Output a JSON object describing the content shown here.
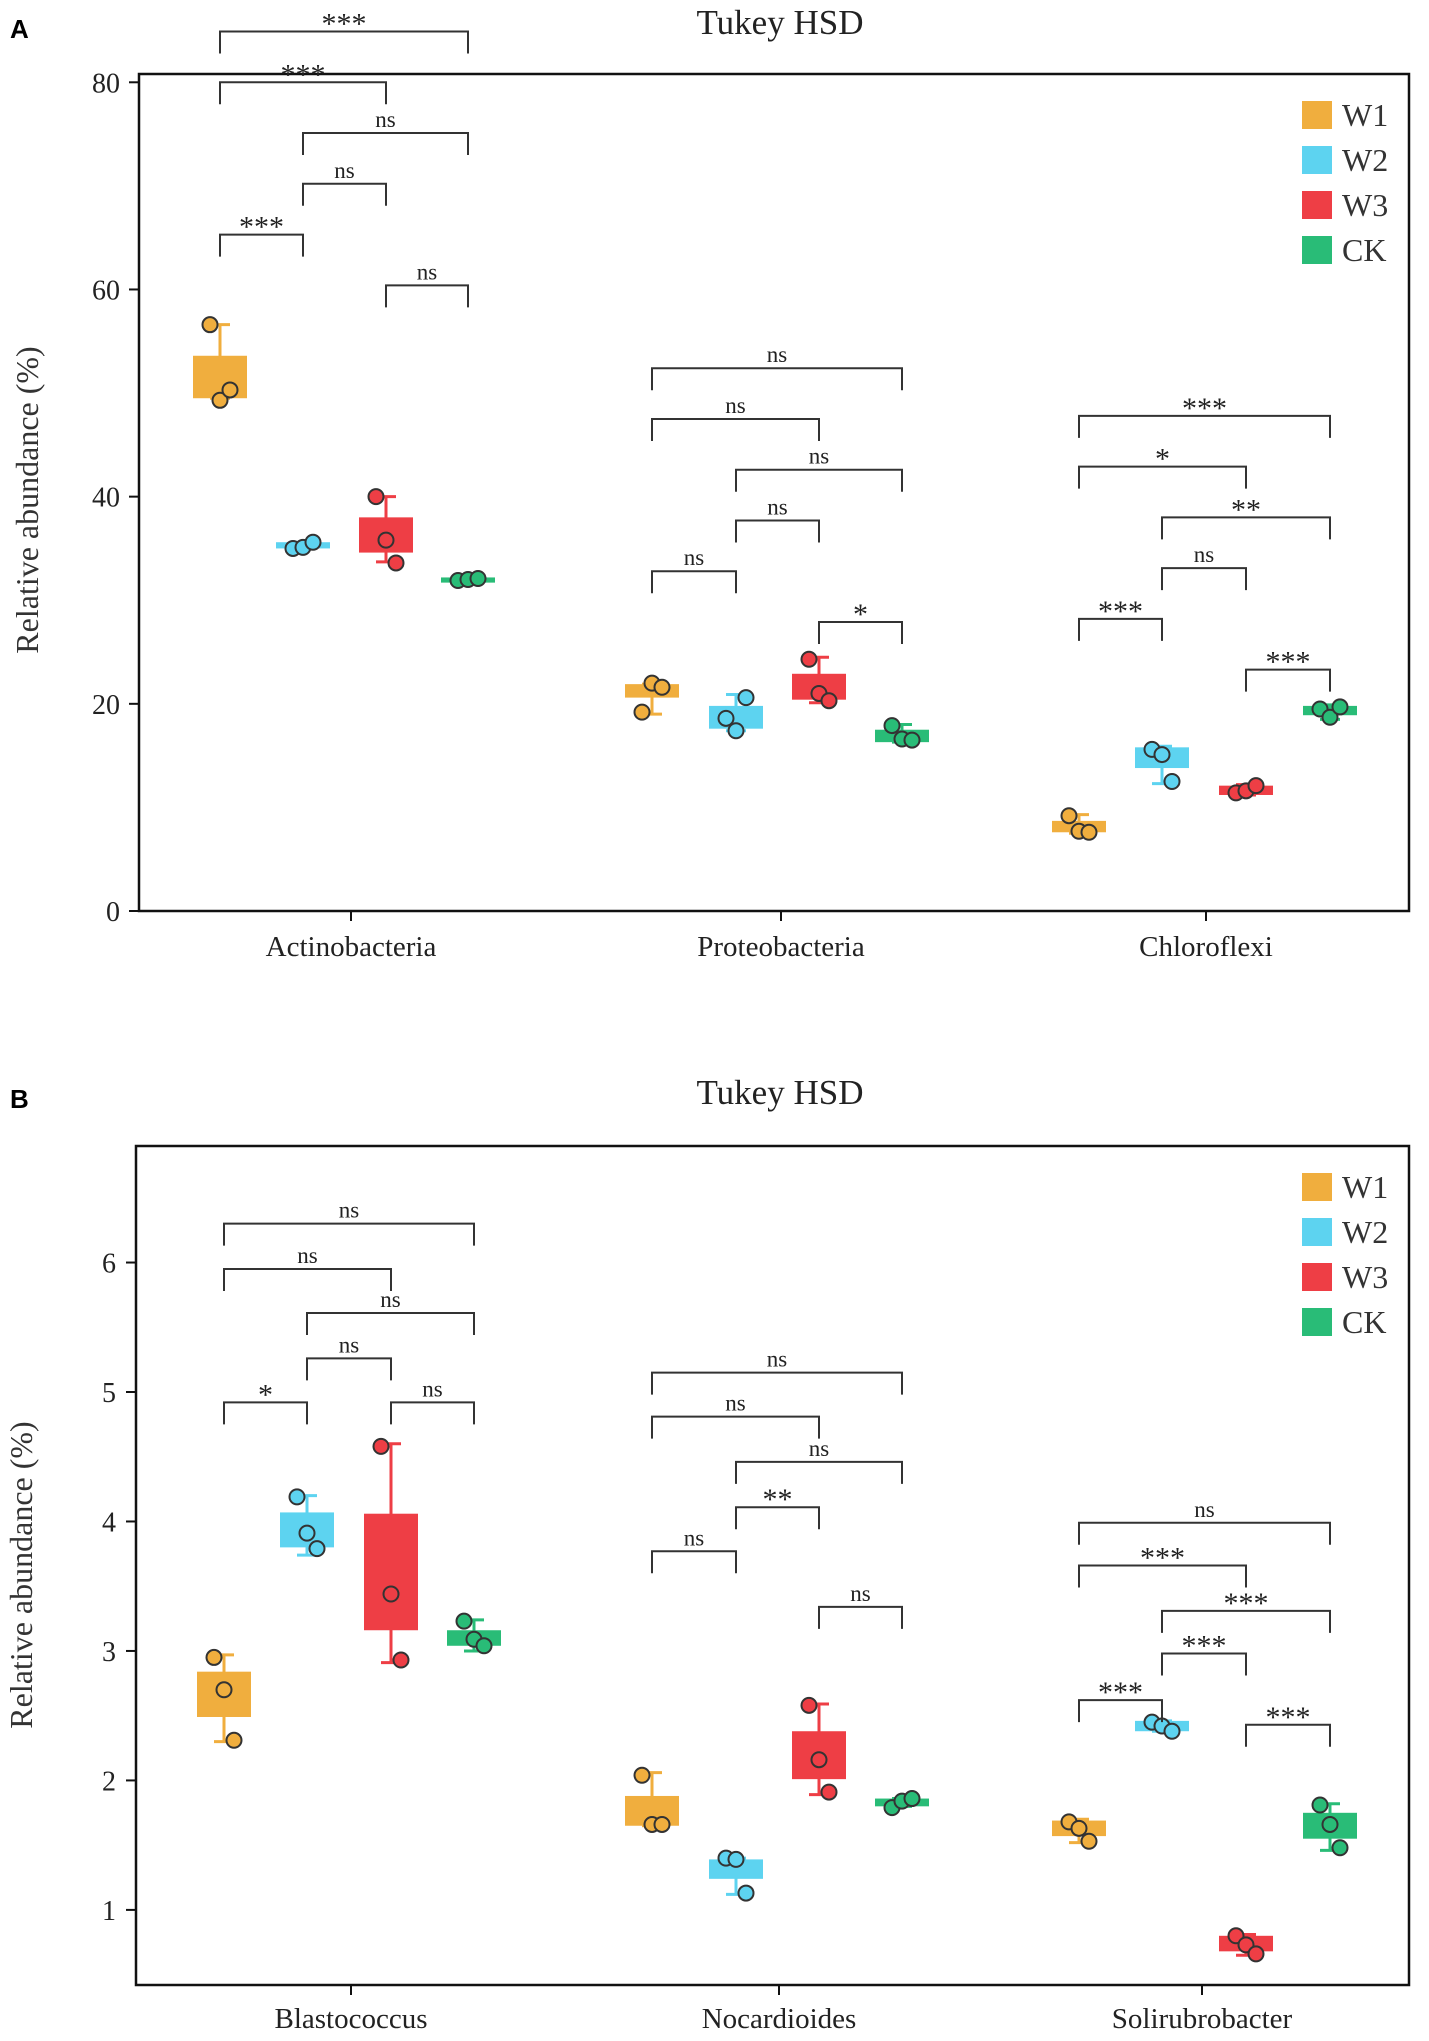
{
  "groups": [
    "W1",
    "W2",
    "W3",
    "CK"
  ],
  "colors": {
    "W1": "#F0AE3E",
    "W2": "#5DD3F0",
    "W3": "#EE3E45",
    "CK": "#29BC77"
  },
  "chart_data": [
    {
      "panel": "A",
      "type": "box",
      "title": "Tukey HSD",
      "ylabel": "Relative abundance (%)",
      "xlabel": "",
      "ylim": [
        0,
        80.8
      ],
      "yticks": [
        0,
        20,
        40,
        60,
        80
      ],
      "ytick_labels": [
        "0",
        "20",
        "40",
        "60",
        "80"
      ],
      "legend": {
        "position": "top-right",
        "labels": [
          "W1",
          "W2",
          "W3",
          "CK"
        ]
      },
      "categories": [
        "Actinobacteria",
        "Proteobacteria",
        "Chloroflexi"
      ],
      "series": [
        {
          "category": "Actinobacteria",
          "group": "W1",
          "min": 49.5,
          "q1": 49.5,
          "q3": 53.6,
          "max": 56.6,
          "points": [
            56.6,
            49.3,
            50.3
          ]
        },
        {
          "category": "Actinobacteria",
          "group": "W2",
          "min": 35.0,
          "q1": 35.0,
          "q3": 35.6,
          "max": 35.6,
          "points": [
            35.0,
            35.1,
            35.6
          ]
        },
        {
          "category": "Actinobacteria",
          "group": "W3",
          "min": 33.7,
          "q1": 34.6,
          "q3": 38.0,
          "max": 40.0,
          "points": [
            40.0,
            35.8,
            33.6
          ]
        },
        {
          "category": "Actinobacteria",
          "group": "CK",
          "min": 31.7,
          "q1": 31.7,
          "q3": 32.2,
          "max": 32.2,
          "points": [
            31.9,
            32.0,
            32.1
          ]
        },
        {
          "category": "Proteobacteria",
          "group": "W1",
          "min": 19.0,
          "q1": 20.6,
          "q3": 21.9,
          "max": 21.9,
          "points": [
            19.2,
            22.0,
            21.6
          ]
        },
        {
          "category": "Proteobacteria",
          "group": "W2",
          "min": 17.4,
          "q1": 17.6,
          "q3": 19.8,
          "max": 20.9,
          "points": [
            18.6,
            17.4,
            20.6
          ]
        },
        {
          "category": "Proteobacteria",
          "group": "W3",
          "min": 20.1,
          "q1": 20.4,
          "q3": 22.9,
          "max": 24.5,
          "points": [
            24.3,
            21.0,
            20.3
          ]
        },
        {
          "category": "Proteobacteria",
          "group": "CK",
          "min": 16.3,
          "q1": 16.3,
          "q3": 17.5,
          "max": 18.0,
          "points": [
            17.9,
            16.6,
            16.5
          ]
        },
        {
          "category": "Chloroflexi",
          "group": "W1",
          "min": 7.5,
          "q1": 7.6,
          "q3": 8.7,
          "max": 9.3,
          "points": [
            9.2,
            7.7,
            7.6
          ]
        },
        {
          "category": "Chloroflexi",
          "group": "W2",
          "min": 12.3,
          "q1": 13.8,
          "q3": 15.8,
          "max": 15.9,
          "points": [
            15.6,
            15.1,
            12.5
          ]
        },
        {
          "category": "Chloroflexi",
          "group": "W3",
          "min": 11.2,
          "q1": 11.2,
          "q3": 12.1,
          "max": 12.2,
          "points": [
            11.4,
            11.6,
            12.1
          ]
        },
        {
          "category": "Chloroflexi",
          "group": "CK",
          "min": 18.5,
          "q1": 18.9,
          "q3": 19.8,
          "max": 19.9,
          "points": [
            19.5,
            18.7,
            19.7
          ]
        }
      ],
      "comparisons": [
        {
          "category": "Actinobacteria",
          "pair": [
            "W1",
            "W2"
          ],
          "label": "***",
          "y": 65.3
        },
        {
          "category": "Actinobacteria",
          "pair": [
            "W2",
            "W3"
          ],
          "label": "ns",
          "y": 70.2
        },
        {
          "category": "Actinobacteria",
          "pair": [
            "W3",
            "CK"
          ],
          "label": "ns",
          "y": 60.4
        },
        {
          "category": "Actinobacteria",
          "pair": [
            "W2",
            "CK"
          ],
          "label": "ns",
          "y": 75.1
        },
        {
          "category": "Actinobacteria",
          "pair": [
            "W1",
            "W3"
          ],
          "label": "***",
          "y": 80.0
        },
        {
          "category": "Actinobacteria",
          "pair": [
            "W1",
            "CK"
          ],
          "label": "***",
          "y": 84.9
        },
        {
          "category": "Proteobacteria",
          "pair": [
            "W1",
            "W2"
          ],
          "label": "ns",
          "y": 32.8
        },
        {
          "category": "Proteobacteria",
          "pair": [
            "W3",
            "CK"
          ],
          "label": "*",
          "y": 27.9
        },
        {
          "category": "Proteobacteria",
          "pair": [
            "W2",
            "W3"
          ],
          "label": "ns",
          "y": 37.7
        },
        {
          "category": "Proteobacteria",
          "pair": [
            "W2",
            "CK"
          ],
          "label": "ns",
          "y": 42.6
        },
        {
          "category": "Proteobacteria",
          "pair": [
            "W1",
            "W3"
          ],
          "label": "ns",
          "y": 47.5
        },
        {
          "category": "Proteobacteria",
          "pair": [
            "W1",
            "CK"
          ],
          "label": "ns",
          "y": 52.4
        },
        {
          "category": "Chloroflexi",
          "pair": [
            "W3",
            "CK"
          ],
          "label": "***",
          "y": 23.3
        },
        {
          "category": "Chloroflexi",
          "pair": [
            "W1",
            "W2"
          ],
          "label": "***",
          "y": 28.2
        },
        {
          "category": "Chloroflexi",
          "pair": [
            "W2",
            "W3"
          ],
          "label": "ns",
          "y": 33.1
        },
        {
          "category": "Chloroflexi",
          "pair": [
            "W2",
            "CK"
          ],
          "label": "**",
          "y": 38.0
        },
        {
          "category": "Chloroflexi",
          "pair": [
            "W1",
            "W3"
          ],
          "label": "*",
          "y": 42.9
        },
        {
          "category": "Chloroflexi",
          "pair": [
            "W1",
            "CK"
          ],
          "label": "***",
          "y": 47.8
        }
      ]
    },
    {
      "panel": "B",
      "type": "box",
      "title": "Tukey HSD",
      "ylabel": "Relative abundance (%)",
      "xlabel": "",
      "ylim": [
        0.42,
        6.9
      ],
      "yticks": [
        1,
        2,
        3,
        4,
        5,
        6
      ],
      "ytick_labels": [
        "1",
        "2",
        "3",
        "4",
        "5",
        "6"
      ],
      "legend": {
        "position": "top-right",
        "labels": [
          "W1",
          "W2",
          "W3",
          "CK"
        ]
      },
      "categories": [
        "Blastococcus",
        "Nocardioides",
        "Solirubrobacter"
      ],
      "series": [
        {
          "category": "Blastococcus",
          "group": "W1",
          "min": 2.3,
          "q1": 2.49,
          "q3": 2.84,
          "max": 2.97,
          "points": [
            2.95,
            2.7,
            2.31
          ]
        },
        {
          "category": "Blastococcus",
          "group": "W2",
          "min": 3.74,
          "q1": 3.8,
          "q3": 4.07,
          "max": 4.2,
          "points": [
            4.19,
            3.91,
            3.79
          ]
        },
        {
          "category": "Blastococcus",
          "group": "W3",
          "min": 2.91,
          "q1": 3.16,
          "q3": 4.06,
          "max": 4.6,
          "points": [
            4.58,
            3.44,
            2.93
          ]
        },
        {
          "category": "Blastococcus",
          "group": "CK",
          "min": 3.0,
          "q1": 3.04,
          "q3": 3.16,
          "max": 3.24,
          "points": [
            3.23,
            3.09,
            3.04
          ]
        },
        {
          "category": "Nocardioides",
          "group": "W1",
          "min": 1.65,
          "q1": 1.65,
          "q3": 1.88,
          "max": 2.06,
          "points": [
            2.04,
            1.66,
            1.66
          ]
        },
        {
          "category": "Nocardioides",
          "group": "W2",
          "min": 1.12,
          "q1": 1.24,
          "q3": 1.39,
          "max": 1.4,
          "points": [
            1.4,
            1.39,
            1.13
          ]
        },
        {
          "category": "Nocardioides",
          "group": "W3",
          "min": 1.89,
          "q1": 2.01,
          "q3": 2.38,
          "max": 2.59,
          "points": [
            2.58,
            2.16,
            1.91
          ]
        },
        {
          "category": "Nocardioides",
          "group": "CK",
          "min": 1.8,
          "q1": 1.8,
          "q3": 1.86,
          "max": 1.86,
          "points": [
            1.79,
            1.84,
            1.86
          ]
        },
        {
          "category": "Solirubrobacter",
          "group": "W1",
          "min": 1.52,
          "q1": 1.57,
          "q3": 1.69,
          "max": 1.7,
          "points": [
            1.68,
            1.63,
            1.53
          ]
        },
        {
          "category": "Solirubrobacter",
          "group": "W2",
          "min": 2.38,
          "q1": 2.38,
          "q3": 2.46,
          "max": 2.46,
          "points": [
            2.45,
            2.42,
            2.38
          ]
        },
        {
          "category": "Solirubrobacter",
          "group": "W3",
          "min": 0.65,
          "q1": 0.68,
          "q3": 0.8,
          "max": 0.81,
          "points": [
            0.8,
            0.73,
            0.66
          ]
        },
        {
          "category": "Solirubrobacter",
          "group": "CK",
          "min": 1.46,
          "q1": 1.55,
          "q3": 1.75,
          "max": 1.82,
          "points": [
            1.81,
            1.66,
            1.48
          ]
        }
      ],
      "comparisons": [
        {
          "category": "Blastococcus",
          "pair": [
            "W1",
            "W2"
          ],
          "label": "*",
          "y": 4.92
        },
        {
          "category": "Blastococcus",
          "pair": [
            "W3",
            "CK"
          ],
          "label": "ns",
          "y": 4.92
        },
        {
          "category": "Blastococcus",
          "pair": [
            "W2",
            "W3"
          ],
          "label": "ns",
          "y": 5.26
        },
        {
          "category": "Blastococcus",
          "pair": [
            "W2",
            "CK"
          ],
          "label": "ns",
          "y": 5.61
        },
        {
          "category": "Blastococcus",
          "pair": [
            "W1",
            "W3"
          ],
          "label": "ns",
          "y": 5.95
        },
        {
          "category": "Blastococcus",
          "pair": [
            "W1",
            "CK"
          ],
          "label": "ns",
          "y": 6.3
        },
        {
          "category": "Nocardioides",
          "pair": [
            "W1",
            "W2"
          ],
          "label": "ns",
          "y": 3.77
        },
        {
          "category": "Nocardioides",
          "pair": [
            "W3",
            "CK"
          ],
          "label": "ns",
          "y": 3.34
        },
        {
          "category": "Nocardioides",
          "pair": [
            "W2",
            "W3"
          ],
          "label": "**",
          "y": 4.11
        },
        {
          "category": "Nocardioides",
          "pair": [
            "W2",
            "CK"
          ],
          "label": "ns",
          "y": 4.46
        },
        {
          "category": "Nocardioides",
          "pair": [
            "W1",
            "W3"
          ],
          "label": "ns",
          "y": 4.81
        },
        {
          "category": "Nocardioides",
          "pair": [
            "W1",
            "CK"
          ],
          "label": "ns",
          "y": 5.15
        },
        {
          "category": "Solirubrobacter",
          "pair": [
            "W1",
            "W2"
          ],
          "label": "***",
          "y": 2.62
        },
        {
          "category": "Solirubrobacter",
          "pair": [
            "W3",
            "CK"
          ],
          "label": "***",
          "y": 2.43
        },
        {
          "category": "Solirubrobacter",
          "pair": [
            "W2",
            "W3"
          ],
          "label": "***",
          "y": 2.98
        },
        {
          "category": "Solirubrobacter",
          "pair": [
            "W2",
            "CK"
          ],
          "label": "***",
          "y": 3.31
        },
        {
          "category": "Solirubrobacter",
          "pair": [
            "W1",
            "W3"
          ],
          "label": "***",
          "y": 3.66
        },
        {
          "category": "Solirubrobacter",
          "pair": [
            "W1",
            "CK"
          ],
          "label": "ns",
          "y": 3.99
        }
      ]
    }
  ]
}
